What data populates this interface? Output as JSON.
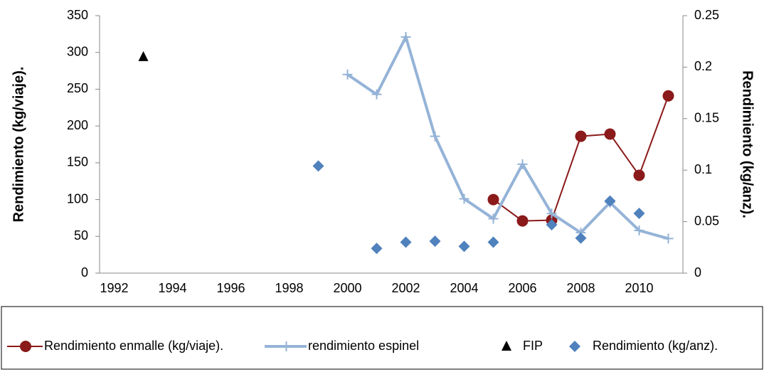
{
  "chart_data": {
    "type": "line",
    "y_label": "Rendimiento (kg/viaje).",
    "y2_label": "Rendimiento (kg/anz).",
    "xlim": [
      1991.5,
      2011.5
    ],
    "xticks": [
      1992,
      1994,
      1996,
      1998,
      2000,
      2002,
      2004,
      2006,
      2008,
      2010
    ],
    "ylim": [
      0,
      350
    ],
    "yticks": [
      0,
      50,
      100,
      150,
      200,
      250,
      300,
      350
    ],
    "y2lim": [
      0,
      0.25
    ],
    "y2ticks": [
      0,
      0.05,
      0.1,
      0.15,
      0.2,
      0.25
    ],
    "series": [
      {
        "name": "Rendimiento enmalle (kg/viaje).",
        "color": "#8b1a1a",
        "marker": "circle",
        "line": true,
        "x": [
          2005,
          2006,
          2007,
          2008,
          2009,
          2010,
          2011
        ],
        "values": [
          100,
          71,
          72,
          186,
          189,
          133,
          241
        ]
      },
      {
        "name": "rendimiento espinel",
        "color": "#95b3d7",
        "marker": "plus",
        "line": true,
        "x": [
          2000,
          2001,
          2002,
          2003,
          2004,
          2005,
          2006,
          2007,
          2008,
          2009,
          2010,
          2011
        ],
        "values": [
          270,
          243,
          321,
          186,
          101,
          74,
          148,
          81,
          55,
          96,
          58,
          47
        ]
      },
      {
        "name": "FIP",
        "color": "#000000",
        "marker": "triangle",
        "line": false,
        "x": [
          1993
        ],
        "values": [
          294
        ]
      },
      {
        "name": "Rendimiento (kg/anz).",
        "color": "#4f81bd",
        "marker": "diamond",
        "line": false,
        "axis": "y2",
        "x": [
          1999,
          2001,
          2002,
          2003,
          2004,
          2005,
          2007,
          2008,
          2009,
          2010
        ],
        "values": [
          0.104,
          0.024,
          0.03,
          0.031,
          0.026,
          0.03,
          0.047,
          0.034,
          0.07,
          0.058
        ]
      }
    ]
  }
}
